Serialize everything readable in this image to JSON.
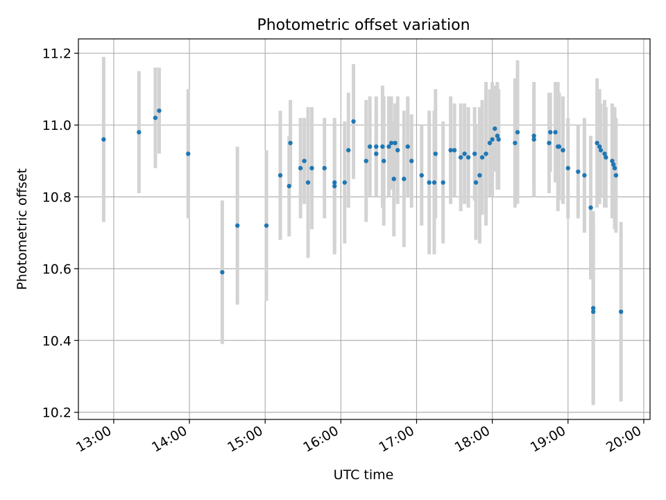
{
  "chart_data": {
    "type": "scatter",
    "title": "Photometric offset variation",
    "xlabel": "UTC time",
    "ylabel": "Photometric offset",
    "x_ticks": [
      "13:00",
      "14:00",
      "15:00",
      "16:00",
      "17:00",
      "18:00",
      "19:00",
      "20:00"
    ],
    "y_ticks": [
      "10.2",
      "10.4",
      "10.6",
      "10.8",
      "11.0",
      "11.2"
    ],
    "xlim": [
      "12:32",
      "20:05"
    ],
    "ylim": [
      10.18,
      11.24
    ],
    "grid": true,
    "errorbar_color": "#d3d3d3",
    "point_color": "#1f77b4",
    "series": [
      {
        "x": [
          "12:52",
          "13:20",
          "13:33",
          "13:36",
          "13:59",
          "14:26",
          "14:38",
          "15:01",
          "15:12",
          "15:19",
          "15:20",
          "15:28",
          "15:31",
          "15:34",
          "15:37",
          "15:47",
          "15:55",
          "15:55",
          "16:03",
          "16:06",
          "16:10",
          "16:20",
          "16:23",
          "16:28",
          "16:28",
          "16:33",
          "16:34",
          "16:38",
          "16:40",
          "16:42",
          "16:43",
          "16:45",
          "16:50",
          "16:53",
          "16:56",
          "17:04",
          "17:10",
          "17:14",
          "17:15",
          "17:21",
          "17:27",
          "17:30",
          "17:35",
          "17:38",
          "17:41",
          "17:46",
          "17:47",
          "17:50",
          "17:52",
          "17:55",
          "17:58",
          "18:00",
          "18:02",
          "18:04",
          "18:05",
          "18:18",
          "18:20",
          "18:33",
          "18:33",
          "18:45",
          "18:46",
          "18:50",
          "18:52",
          "18:53",
          "18:56",
          "18:56",
          "19:00",
          "19:08",
          "19:13",
          "19:18",
          "19:20",
          "19:20",
          "19:23",
          "19:25",
          "19:26",
          "19:29",
          "19:30",
          "19:35",
          "19:36",
          "19:37",
          "19:38",
          "19:42"
        ],
        "y": [
          10.96,
          10.98,
          11.02,
          11.04,
          10.92,
          10.59,
          10.72,
          10.72,
          10.86,
          10.83,
          10.95,
          10.88,
          10.9,
          10.84,
          10.88,
          10.88,
          10.84,
          10.83,
          10.84,
          10.93,
          11.01,
          10.9,
          10.94,
          10.94,
          10.92,
          10.94,
          10.9,
          10.94,
          10.95,
          10.85,
          10.95,
          10.93,
          10.85,
          10.94,
          10.9,
          10.86,
          10.84,
          10.84,
          10.92,
          10.84,
          10.93,
          10.93,
          10.91,
          10.92,
          10.91,
          10.92,
          10.84,
          10.86,
          10.91,
          10.92,
          10.95,
          10.96,
          10.99,
          10.97,
          10.96,
          10.95,
          10.98,
          10.96,
          10.97,
          10.95,
          10.98,
          10.98,
          10.94,
          10.94,
          10.93,
          10.93,
          10.88,
          10.87,
          10.86,
          10.77,
          10.49,
          10.48,
          10.95,
          10.94,
          10.93,
          10.92,
          10.91,
          10.9,
          10.89,
          10.88,
          10.86,
          10.48
        ],
        "err": [
          0.23,
          0.17,
          0.14,
          0.12,
          0.18,
          0.2,
          0.22,
          0.21,
          0.18,
          0.14,
          0.12,
          0.14,
          0.12,
          0.21,
          0.17,
          0.14,
          0.17,
          0.19,
          0.17,
          0.16,
          0.16,
          0.17,
          0.14,
          0.14,
          0.12,
          0.17,
          0.18,
          0.14,
          0.13,
          0.16,
          0.11,
          0.15,
          0.19,
          0.14,
          0.13,
          0.14,
          0.2,
          0.2,
          0.18,
          0.17,
          0.15,
          0.13,
          0.15,
          0.14,
          0.14,
          0.13,
          0.16,
          0.19,
          0.16,
          0.2,
          0.15,
          0.16,
          0.12,
          0.15,
          0.14,
          0.18,
          0.2,
          0.16,
          0.13,
          0.14,
          0.11,
          0.14,
          0.18,
          0.15,
          0.14,
          0.15,
          0.14,
          0.13,
          0.16,
          0.2,
          0.27,
          0.25,
          0.18,
          0.16,
          0.13,
          0.15,
          0.14,
          0.16,
          0.15,
          0.17,
          0.16,
          0.25
        ]
      }
    ]
  }
}
